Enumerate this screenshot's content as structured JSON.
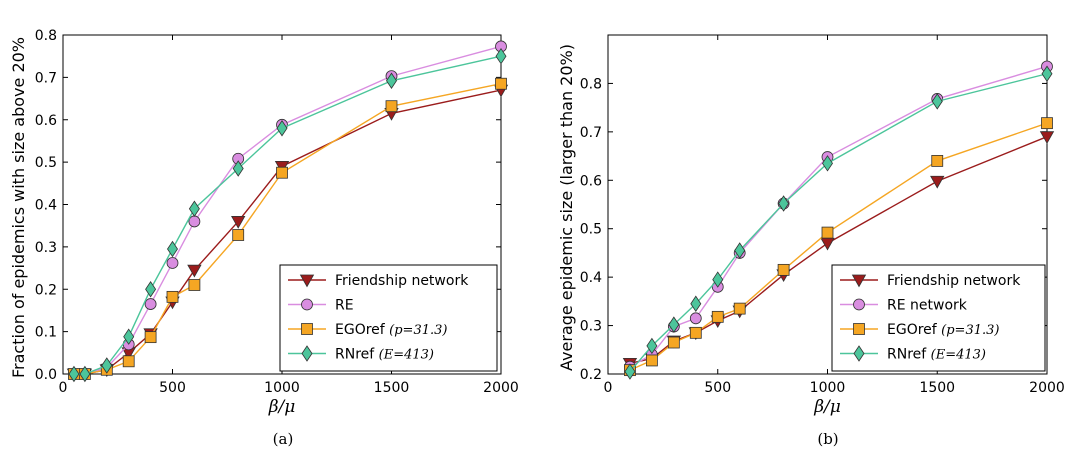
{
  "panels": [
    {
      "caption": "(a)",
      "chart_data": {
        "type": "line",
        "title": "",
        "xlabel": "β/μ",
        "ylabel": "Fraction of epidemics with size above 20%",
        "xlim": [
          0,
          2000
        ],
        "ylim": [
          0.0,
          0.8
        ],
        "xticks": [
          0,
          500,
          1000,
          1500,
          2000
        ],
        "yticks": [
          0.0,
          0.1,
          0.2,
          0.3,
          0.4,
          0.5,
          0.6,
          0.7,
          0.8
        ],
        "ytick_labels": [
          "0.0",
          "0.1",
          "0.2",
          "0.3",
          "0.4",
          "0.5",
          "0.6",
          "0.7",
          "0.8"
        ],
        "grid": false,
        "legend_position": "lower-right",
        "series": [
          {
            "name": "Friendship network",
            "name_math": "",
            "color": "#9b1c1c",
            "marker": "triangle-down",
            "x": [
              50,
              100,
              200,
              300,
              400,
              500,
              600,
              800,
              1000,
              1500,
              2000
            ],
            "y": [
              0.0,
              0.0,
              0.01,
              0.05,
              0.095,
              0.17,
              0.245,
              0.36,
              0.49,
              0.615,
              0.67
            ]
          },
          {
            "name": "RE",
            "name_math": "",
            "color": "#d98de0",
            "marker": "circle",
            "x": [
              50,
              100,
              200,
              300,
              400,
              500,
              600,
              800,
              1000,
              1500,
              2000
            ],
            "y": [
              0.0,
              0.0,
              0.015,
              0.07,
              0.165,
              0.262,
              0.36,
              0.508,
              0.588,
              0.703,
              0.773
            ]
          },
          {
            "name": "EGOref ",
            "name_math": "(p=31.3)",
            "color": "#f5a623",
            "marker": "square",
            "x": [
              50,
              100,
              200,
              300,
              400,
              500,
              600,
              800,
              1000,
              1500,
              2000
            ],
            "y": [
              0.0,
              0.0,
              0.01,
              0.03,
              0.087,
              0.182,
              0.21,
              0.328,
              0.475,
              0.632,
              0.685
            ]
          },
          {
            "name": "RNref ",
            "name_math": "(E=413)",
            "color": "#4cc59b",
            "marker": "diamond",
            "x": [
              50,
              100,
              200,
              300,
              400,
              500,
              600,
              800,
              1000,
              1500,
              2000
            ],
            "y": [
              0.0,
              0.0,
              0.02,
              0.088,
              0.2,
              0.295,
              0.39,
              0.485,
              0.58,
              0.692,
              0.75
            ]
          }
        ]
      }
    },
    {
      "caption": "(b)",
      "chart_data": {
        "type": "line",
        "title": "",
        "xlabel": "β/μ",
        "ylabel": "Average epidemic size (larger than 20%)",
        "xlim": [
          0,
          2000
        ],
        "ylim": [
          0.2,
          0.9
        ],
        "xticks": [
          0,
          500,
          1000,
          1500,
          2000
        ],
        "yticks": [
          0.2,
          0.3,
          0.4,
          0.5,
          0.6,
          0.7,
          0.8
        ],
        "ytick_labels": [
          "0.2",
          "0.3",
          "0.4",
          "0.5",
          "0.6",
          "0.7",
          "0.8"
        ],
        "grid": false,
        "legend_position": "lower-right",
        "series": [
          {
            "name": "Friendship network",
            "name_math": "",
            "color": "#9b1c1c",
            "marker": "triangle-down",
            "x": [
              100,
              200,
              300,
              400,
              500,
              600,
              800,
              1000,
              1500,
              2000
            ],
            "y": [
              0.222,
              0.232,
              0.268,
              0.285,
              0.31,
              0.33,
              0.405,
              0.47,
              0.598,
              0.69
            ]
          },
          {
            "name": "RE network",
            "name_math": "",
            "color": "#d98de0",
            "marker": "circle",
            "x": [
              100,
              200,
              300,
              400,
              500,
              600,
              800,
              1000,
              1500,
              2000
            ],
            "y": [
              0.215,
              0.24,
              0.298,
              0.315,
              0.38,
              0.45,
              0.552,
              0.648,
              0.768,
              0.835
            ]
          },
          {
            "name": "EGOref ",
            "name_math": "(p=31.3)",
            "color": "#f5a623",
            "marker": "square",
            "x": [
              100,
              200,
              300,
              400,
              500,
              600,
              800,
              1000,
              1500,
              2000
            ],
            "y": [
              0.208,
              0.228,
              0.265,
              0.285,
              0.318,
              0.335,
              0.415,
              0.492,
              0.64,
              0.718
            ]
          },
          {
            "name": "RNref ",
            "name_math": "(E=413)",
            "color": "#4cc59b",
            "marker": "diamond",
            "x": [
              100,
              200,
              300,
              400,
              500,
              600,
              800,
              1000,
              1500,
              2000
            ],
            "y": [
              0.205,
              0.258,
              0.302,
              0.345,
              0.395,
              0.455,
              0.552,
              0.635,
              0.763,
              0.82
            ]
          }
        ]
      }
    }
  ]
}
